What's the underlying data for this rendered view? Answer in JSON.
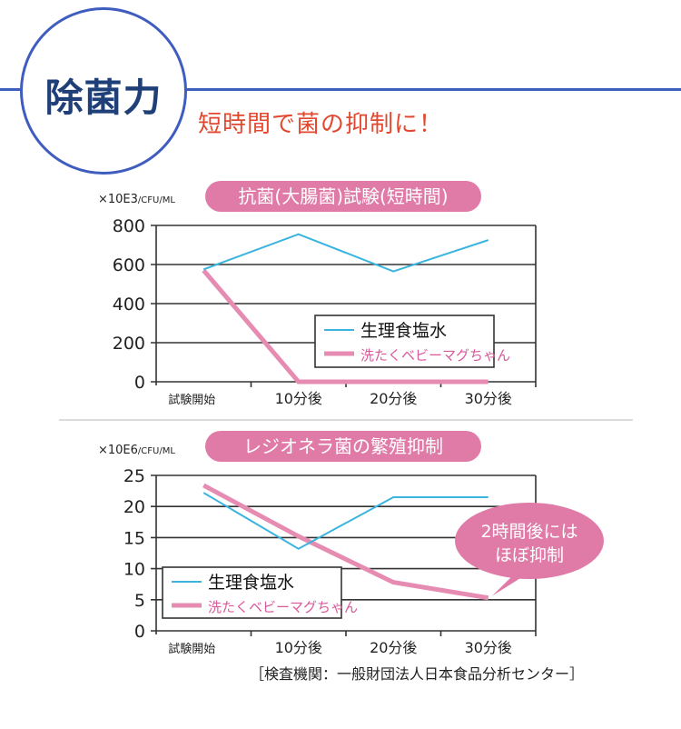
{
  "header": {
    "title": "除菌力",
    "subtitle": "短時間で菌の抑制に！"
  },
  "colors": {
    "accent_blue": "#3f5dbf",
    "title_navy": "#1e3f78",
    "subtitle_red": "#e2482f",
    "pill_pink": "#e07ba8",
    "series_blue": "#3bb4e0",
    "series_pink": "#e68bb1"
  },
  "chart_data": [
    {
      "type": "line",
      "title": "抗菌(大腸菌)試験(短時間)",
      "unit_label": "×10E3",
      "unit_suffix": "/CFU/ML",
      "categories": [
        "試験開始",
        "10分後",
        "20分後",
        "30分後"
      ],
      "yticks": [
        "0",
        "200",
        "400",
        "600",
        "800"
      ],
      "ylim": [
        0,
        800
      ],
      "grid": true,
      "legend_position": "center-right",
      "series": [
        {
          "name": "生理食塩水",
          "color": "#3bb4e0",
          "values": [
            575,
            755,
            565,
            725
          ]
        },
        {
          "name": "洗たくベビーマグちゃん",
          "color": "#e68bb1",
          "values": [
            570,
            0,
            0,
            0
          ]
        }
      ]
    },
    {
      "type": "line",
      "title": "レジオネラ菌の繁殖抑制",
      "unit_label": "×10E6",
      "unit_suffix": "/CFU/ML",
      "categories": [
        "試験開始",
        "10分後",
        "20分後",
        "30分後"
      ],
      "yticks": [
        "0",
        "5",
        "10",
        "15",
        "20",
        "25"
      ],
      "ylim": [
        0,
        25
      ],
      "grid": true,
      "legend_position": "bottom-left",
      "annotation": [
        "2時間後には",
        "ほぼ抑制"
      ],
      "series": [
        {
          "name": "生理食塩水",
          "color": "#3bb4e0",
          "values": [
            22.2,
            13.2,
            21.5,
            21.5
          ]
        },
        {
          "name": "洗たくベビーマグちゃん",
          "color": "#e68bb1",
          "values": [
            23.4,
            15.2,
            7.8,
            5.3
          ]
        }
      ]
    }
  ],
  "footer": {
    "source": "［検査機関：一般財団法人日本食品分析センター］"
  }
}
